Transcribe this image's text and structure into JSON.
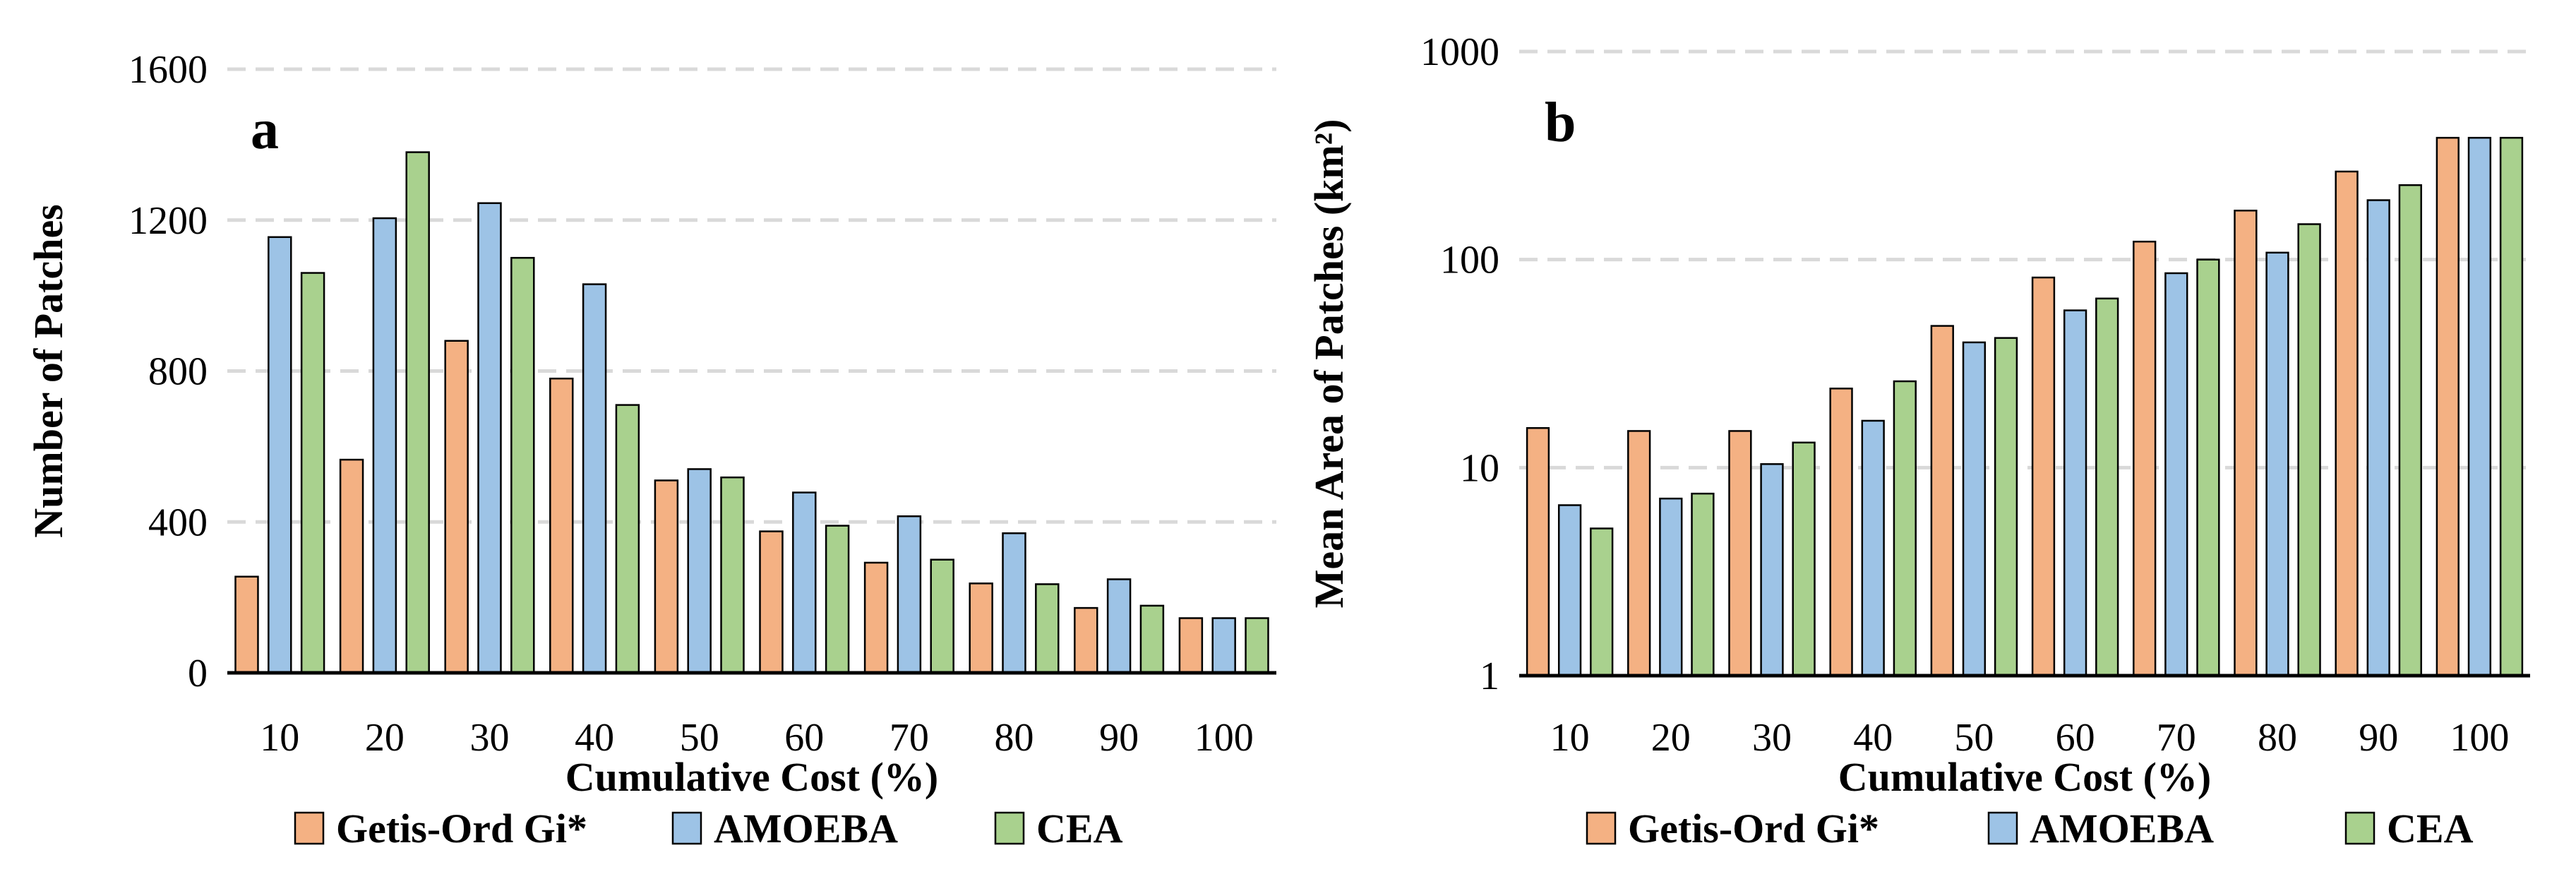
{
  "colors": {
    "getis": "#F4B183",
    "amoeba": "#9DC3E6",
    "cea": "#A9D18E"
  },
  "legend": [
    {
      "label": "Getis-Ord Gi*",
      "color": "#F4B183"
    },
    {
      "label": "AMOEBA",
      "color": "#9DC3E6"
    },
    {
      "label": "CEA",
      "color": "#A9D18E"
    }
  ],
  "chart_data": [
    {
      "panel": "a",
      "type": "bar",
      "xlabel": "Cumulative Cost (%)",
      "ylabel": "Number of Patches",
      "yscale": "linear",
      "ylim": [
        0,
        1600
      ],
      "yticks": [
        0,
        400,
        800,
        1200,
        1600
      ],
      "ytick_labels": [
        "0",
        "400",
        "800",
        "1200",
        "1600"
      ],
      "grid": true,
      "legend_position": "bottom",
      "categories": [
        "10",
        "20",
        "30",
        "40",
        "50",
        "60",
        "70",
        "80",
        "90",
        "100"
      ],
      "series": [
        {
          "name": "Getis-Ord Gi*",
          "values": [
            255,
            565,
            880,
            780,
            510,
            375,
            292,
            237,
            172,
            145
          ]
        },
        {
          "name": "AMOEBA",
          "values": [
            1155,
            1205,
            1245,
            1030,
            540,
            478,
            415,
            370,
            248,
            145
          ]
        },
        {
          "name": "CEA",
          "values": [
            1060,
            1380,
            1100,
            710,
            518,
            390,
            300,
            235,
            178,
            145
          ]
        }
      ]
    },
    {
      "panel": "b",
      "type": "bar",
      "xlabel": "Cumulative Cost (%)",
      "ylabel": "Mean Area of Patches (km²)",
      "yscale": "log",
      "ylim": [
        1,
        1000
      ],
      "yticks": [
        1,
        10,
        100,
        1000
      ],
      "ytick_labels": [
        "1",
        "10",
        "100",
        "1000"
      ],
      "grid": true,
      "legend_position": "bottom",
      "categories": [
        "10",
        "20",
        "30",
        "40",
        "50",
        "60",
        "70",
        "80",
        "90",
        "100"
      ],
      "series": [
        {
          "name": "Getis-Ord Gi*",
          "values": [
            15.5,
            15,
            15,
            24,
            48,
            82,
            122,
            172,
            265,
            385
          ]
        },
        {
          "name": "AMOEBA",
          "values": [
            6.6,
            7.1,
            10.4,
            16.8,
            40,
            57,
            86,
            108,
            193,
            385
          ]
        },
        {
          "name": "CEA",
          "values": [
            5.1,
            7.5,
            13.2,
            26,
            42,
            65,
            100,
            148,
            228,
            385
          ]
        }
      ]
    }
  ]
}
